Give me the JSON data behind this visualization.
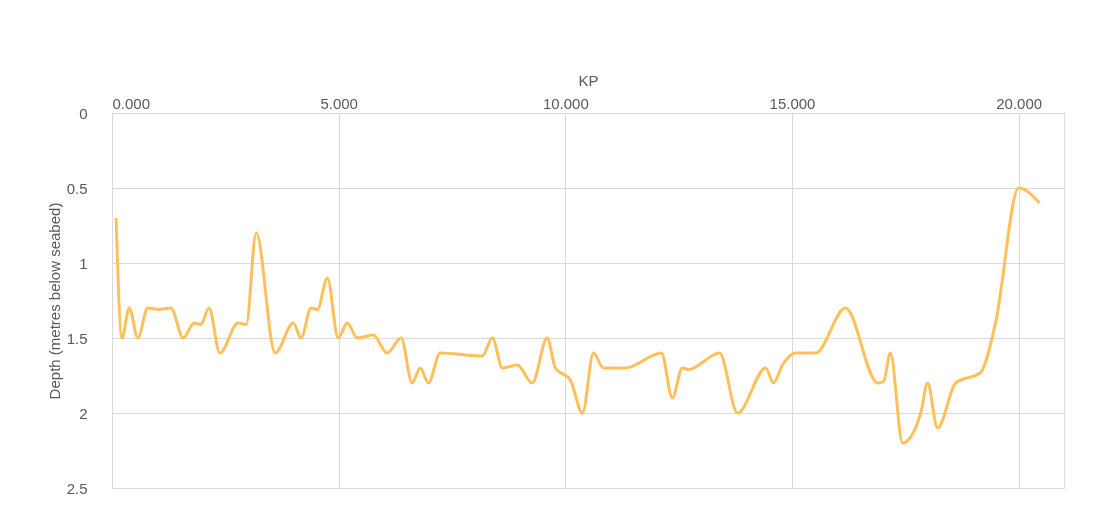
{
  "chart_data": {
    "type": "line",
    "xlabel": "KP",
    "ylabel": "Depth (metres below seabed)",
    "x": [
      0.09,
      0.22,
      0.38,
      0.57,
      0.79,
      1.02,
      1.3,
      1.57,
      1.81,
      1.96,
      2.14,
      2.38,
      2.78,
      2.96,
      3.18,
      3.6,
      4.0,
      4.17,
      4.39,
      4.53,
      4.75,
      4.99,
      5.19,
      5.41,
      5.76,
      6.07,
      6.38,
      6.62,
      6.8,
      6.98,
      7.24,
      8.17,
      8.39,
      8.61,
      8.94,
      9.27,
      9.6,
      9.78,
      10.11,
      10.38,
      10.62,
      10.84,
      11.32,
      12.12,
      12.36,
      12.58,
      12.72,
      13.4,
      13.8,
      14.42,
      14.59,
      14.79,
      15.08,
      15.52,
      16.18,
      16.89,
      17.02,
      17.17,
      17.44,
      17.84,
      17.99,
      18.21,
      18.61,
      19.16,
      19.49,
      20.0,
      20.46
    ],
    "series": [
      {
        "color": "#ffc05c",
        "values": [
          0.7,
          1.5,
          1.3,
          1.5,
          1.3,
          1.31,
          1.3,
          1.5,
          1.4,
          1.41,
          1.3,
          1.6,
          1.4,
          1.41,
          0.8,
          1.6,
          1.4,
          1.5,
          1.3,
          1.31,
          1.1,
          1.5,
          1.4,
          1.5,
          1.48,
          1.6,
          1.5,
          1.8,
          1.7,
          1.8,
          1.6,
          1.62,
          1.5,
          1.7,
          1.68,
          1.8,
          1.5,
          1.7,
          1.78,
          2.0,
          1.6,
          1.7,
          1.7,
          1.6,
          1.9,
          1.7,
          1.71,
          1.6,
          2.0,
          1.7,
          1.8,
          1.68,
          1.6,
          1.6,
          1.3,
          1.8,
          1.79,
          1.6,
          2.2,
          2.0,
          1.8,
          2.1,
          1.8,
          1.73,
          1.4,
          0.5,
          0.6
        ]
      }
    ],
    "xlim": [
      0,
      21
    ],
    "xticks": [
      {
        "value": 0,
        "label": "0.000"
      },
      {
        "value": 5,
        "label": "5.000"
      },
      {
        "value": 10,
        "label": "10.000"
      },
      {
        "value": 15,
        "label": "15.000"
      },
      {
        "value": 20,
        "label": "20.000"
      }
    ],
    "ylim": [
      2.5,
      0
    ],
    "yticks": [
      0,
      0.5,
      1,
      1.5,
      2,
      2.5
    ],
    "grid": true,
    "marker": "none",
    "line_style": "solid"
  }
}
